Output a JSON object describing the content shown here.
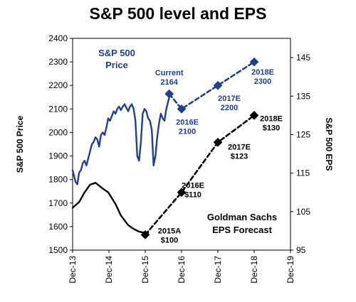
{
  "chart_data": {
    "type": "line",
    "title": "S&P 500 level and EPS",
    "ylabel": "S&P 500 Price",
    "y2label": "S&P 500 EPS",
    "ylim": [
      1500,
      2400
    ],
    "y2lim": [
      95,
      150
    ],
    "yticks": [
      "1500",
      "1600",
      "1700",
      "1800",
      "1900",
      "2000",
      "2100",
      "2200",
      "2300",
      "2400"
    ],
    "y2ticks": [
      "95",
      "105",
      "115",
      "125",
      "135",
      "145"
    ],
    "xticks": [
      "Dec-13",
      "Dec-14",
      "Dec-15",
      "Dec-16",
      "Dec-17",
      "Dec-18",
      "Dec-19"
    ],
    "price_label": [
      "S&P 500",
      "Price"
    ],
    "eps_label": [
      "Goldman Sachs",
      "EPS Forecast"
    ],
    "series": [
      {
        "name": "S&P 500 Price",
        "axis": "left",
        "color": "#1f3f8f",
        "style": "solid",
        "x": [
          2013.92,
          2014.0,
          2014.05,
          2014.1,
          2014.15,
          2014.2,
          2014.25,
          2014.3,
          2014.35,
          2014.4,
          2014.45,
          2014.5,
          2014.55,
          2014.6,
          2014.65,
          2014.7,
          2014.75,
          2014.8,
          2014.85,
          2014.9,
          2014.95,
          2015.0,
          2015.05,
          2015.1,
          2015.15,
          2015.2,
          2015.25,
          2015.3,
          2015.35,
          2015.4,
          2015.45,
          2015.5,
          2015.55,
          2015.6,
          2015.65,
          2015.7,
          2015.75,
          2015.8,
          2015.85,
          2015.9,
          2015.95,
          2016.0,
          2016.05,
          2016.1,
          2016.15,
          2016.2,
          2016.25,
          2016.3,
          2016.35,
          2016.4,
          2016.45,
          2016.5,
          2016.55,
          2016.6
        ],
        "values": [
          1840,
          1790,
          1780,
          1830,
          1840,
          1870,
          1880,
          1860,
          1890,
          1920,
          1950,
          1960,
          1980,
          1970,
          1940,
          1990,
          2000,
          1990,
          2020,
          2060,
          2050,
          2070,
          2090,
          2080,
          2100,
          2110,
          2095,
          2110,
          2120,
          2105,
          2090,
          2110,
          2120,
          2100,
          2050,
          1900,
          1880,
          1960,
          2080,
          2100,
          2090,
          2060,
          2050,
          2010,
          1860,
          1900,
          1980,
          2040,
          2080,
          2060,
          2050,
          2100,
          2130,
          2164
        ]
      },
      {
        "name": "S&P 500 Price Forecast",
        "axis": "left",
        "color": "#1f3f8f",
        "style": "dashed",
        "x": [
          2016.58,
          2016.92,
          2017.92,
          2018.92
        ],
        "values": [
          2164,
          2100,
          2200,
          2300
        ]
      },
      {
        "name": "S&P 500 EPS",
        "axis": "right",
        "color": "#000000",
        "style": "solid",
        "x": [
          2013.92,
          2014.1,
          2014.25,
          2014.4,
          2014.55,
          2014.75,
          2014.9,
          2015.1,
          2015.25,
          2015.45,
          2015.6,
          2015.75,
          2015.9,
          2016.0
        ],
        "values": [
          106,
          107.5,
          110,
          112,
          112.5,
          111,
          110,
          107,
          104,
          101.5,
          100.5,
          99.8,
          99.5,
          99.5
        ]
      },
      {
        "name": "EPS Forecast",
        "axis": "right",
        "color": "#000000",
        "style": "dashed",
        "x": [
          2015.92,
          2016.92,
          2017.92,
          2018.92
        ],
        "values": [
          99,
          110,
          123,
          130
        ]
      }
    ],
    "annotations": [
      {
        "lines": [
          "Current",
          "2164"
        ],
        "color": "blue"
      },
      {
        "lines": [
          "2016E",
          "2100"
        ],
        "color": "blue"
      },
      {
        "lines": [
          "2017E",
          "2200"
        ],
        "color": "blue"
      },
      {
        "lines": [
          "2018E",
          "2300"
        ],
        "color": "blue"
      },
      {
        "lines": [
          "2015A",
          "$100"
        ],
        "color": "black"
      },
      {
        "lines": [
          "2016E",
          "$110"
        ],
        "color": "black"
      },
      {
        "lines": [
          "2017E",
          "$123"
        ],
        "color": "black"
      },
      {
        "lines": [
          "2018E",
          "$130"
        ],
        "color": "black"
      }
    ]
  }
}
